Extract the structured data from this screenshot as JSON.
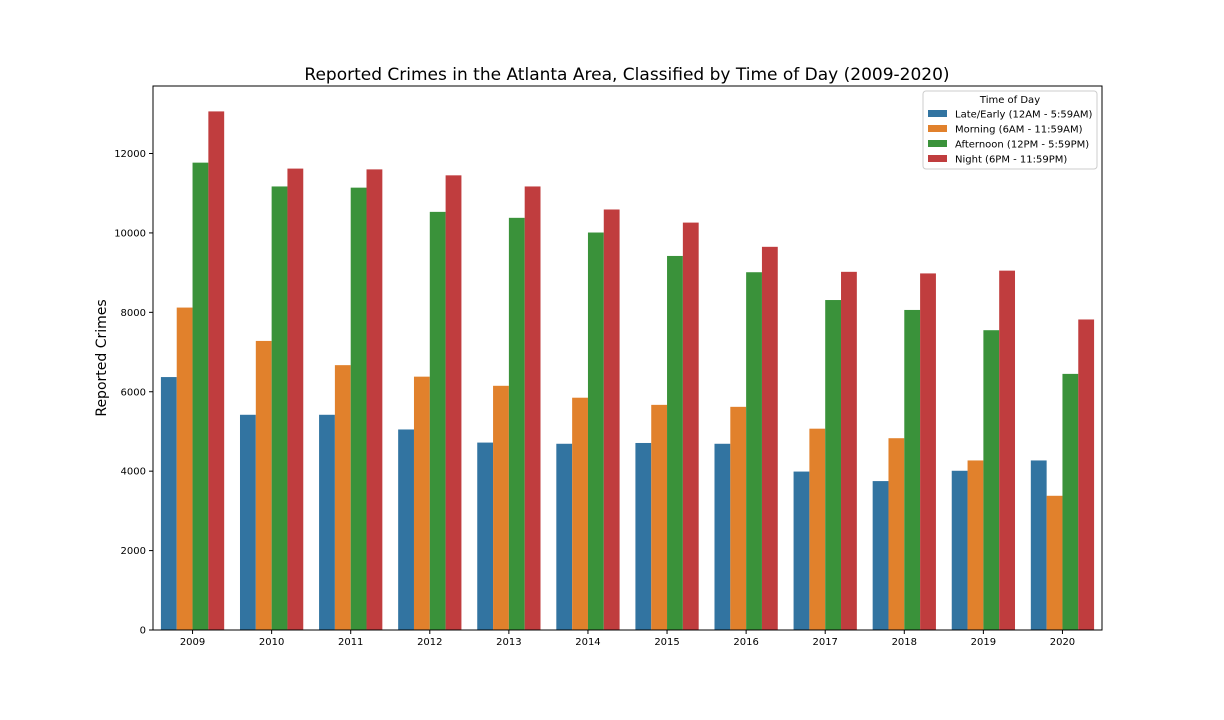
{
  "chart_data": {
    "type": "bar",
    "title": "Reported Crimes in the Atlanta Area, Classified by Time of Day (2009-2020)",
    "xlabel": "",
    "ylabel": "Reported Crimes",
    "ylim": [
      0,
      13700
    ],
    "yticks": [
      0,
      2000,
      4000,
      6000,
      8000,
      10000,
      12000
    ],
    "ytick_labels": [
      "0",
      "2000",
      "4000",
      "6000",
      "8000",
      "10000",
      "12000"
    ],
    "categories": [
      "2009",
      "2010",
      "2011",
      "2012",
      "2013",
      "2014",
      "2015",
      "2016",
      "2017",
      "2018",
      "2019",
      "2020"
    ],
    "legend": {
      "title": "Time of Day",
      "placement": "top-right"
    },
    "grid": false,
    "series": [
      {
        "name": "Late/Early (12AM - 5:59AM)",
        "color": "#3274a1",
        "values": [
          6370,
          5420,
          5420,
          5050,
          4720,
          4690,
          4710,
          4690,
          3990,
          3750,
          4010,
          4270
        ]
      },
      {
        "name": "Morning (6AM - 11:59AM)",
        "color": "#e1812c",
        "values": [
          8120,
          7280,
          6670,
          6380,
          6150,
          5850,
          5670,
          5620,
          5070,
          4830,
          4270,
          3380
        ]
      },
      {
        "name": "Afternoon (12PM - 5:59PM)",
        "color": "#3a923a",
        "values": [
          11770,
          11170,
          11140,
          10530,
          10380,
          10010,
          9420,
          9010,
          8310,
          8060,
          7550,
          6450
        ]
      },
      {
        "name": "Night (6PM - 11:59PM)",
        "color": "#c03d3e",
        "values": [
          13060,
          11620,
          11600,
          11450,
          11170,
          10590,
          10260,
          9650,
          9020,
          8980,
          9050,
          7820
        ]
      }
    ]
  }
}
